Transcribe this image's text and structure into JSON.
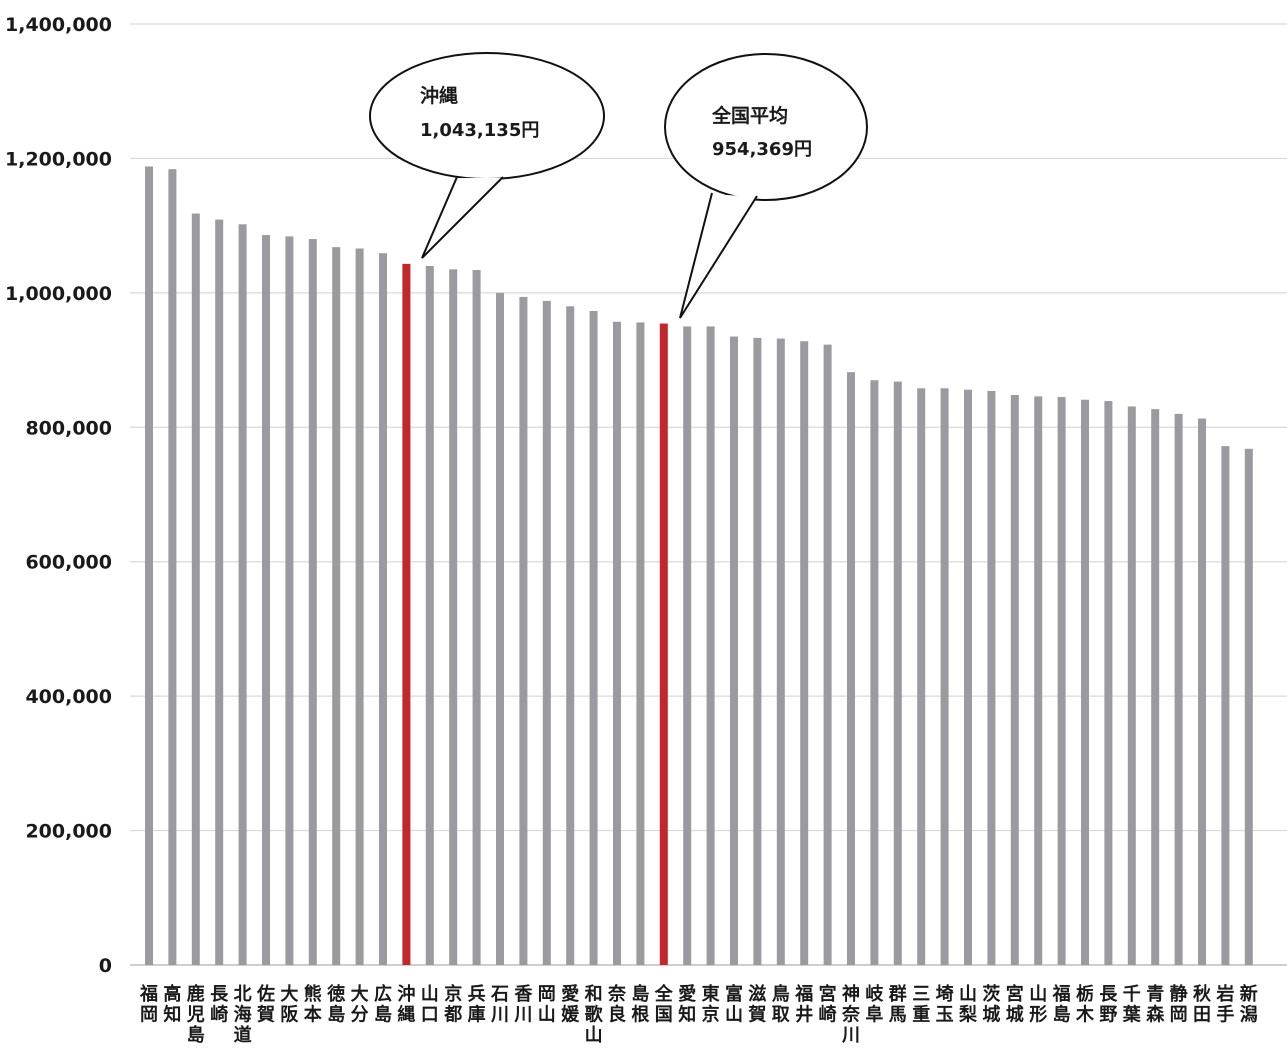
{
  "chart_data": {
    "type": "bar",
    "title": "",
    "xlabel": "",
    "ylabel": "",
    "ylim": [
      0,
      1400000
    ],
    "yticks": [
      0,
      200000,
      400000,
      600000,
      800000,
      1000000,
      1200000,
      1400000
    ],
    "ytick_labels": [
      "0",
      "200,000",
      "400,000",
      "600,000",
      "800,000",
      "1,000,000",
      "1,200,000",
      "1,400,000"
    ],
    "grid": true,
    "legend": "none",
    "colors": {
      "bar": "#9a9a9f",
      "highlight": "#c1272d",
      "grid": "#d9d9d9",
      "axis": "#b0b0b0"
    },
    "categories": [
      "福岡",
      "高知",
      "鹿児島",
      "長崎",
      "北海道",
      "佐賀",
      "大阪",
      "熊本",
      "徳島",
      "大分",
      "広島",
      "沖縄",
      "山口",
      "京都",
      "兵庫",
      "石川",
      "香川",
      "岡山",
      "愛媛",
      "和歌山",
      "奈良",
      "島根",
      "全国",
      "愛知",
      "東京",
      "富山",
      "滋賀",
      "鳥取",
      "福井",
      "宮崎",
      "神奈川",
      "岐阜",
      "群馬",
      "三重",
      "埼玉",
      "山梨",
      "茨城",
      "宮城",
      "山形",
      "福島",
      "栃木",
      "長野",
      "千葉",
      "青森",
      "静岡",
      "秋田",
      "岩手",
      "新潟"
    ],
    "values": [
      1188000,
      1184000,
      1118000,
      1109000,
      1102000,
      1086000,
      1084000,
      1080000,
      1068000,
      1066000,
      1059000,
      1043135,
      1040000,
      1035000,
      1034000,
      1000000,
      994000,
      988000,
      980000,
      973000,
      957000,
      956000,
      954369,
      950000,
      950000,
      935000,
      933000,
      932000,
      928000,
      923000,
      882000,
      870000,
      868000,
      858000,
      858000,
      856000,
      854000,
      848000,
      846000,
      845000,
      841000,
      839000,
      831000,
      827000,
      820000,
      813000,
      772000,
      768000
    ],
    "highlighted": [
      "沖縄",
      "全国"
    ],
    "annotations": [
      {
        "category": "沖縄",
        "lines": [
          "沖縄",
          "1,043,135円"
        ]
      },
      {
        "category": "全国",
        "lines": [
          "全国平均",
          "954,369円"
        ]
      }
    ]
  }
}
